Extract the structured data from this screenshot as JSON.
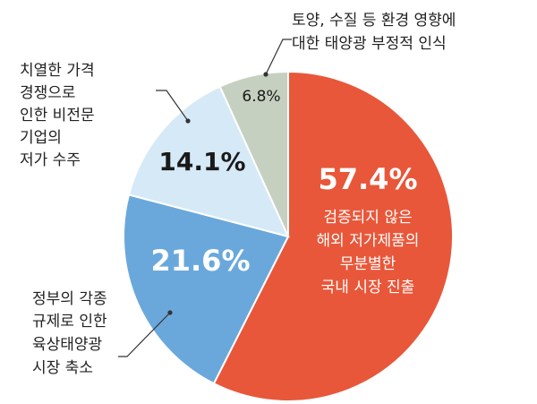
{
  "chart_data": {
    "type": "pie",
    "slices": [
      {
        "label": "검증되지 않은 해외 저가제품의 무분별한 국내 시장 진출",
        "label_lines": [
          "검증되지 않은",
          "해외 저가제품의",
          "무분별한",
          "국내 시장 진출"
        ],
        "value": 57.4,
        "value_text": "57.4%",
        "color": "#e8573a"
      },
      {
        "label": "정부의 각종 규제로 인한 육상태양광 시장 축소",
        "label_lines": [
          "정부의 각종",
          "규제로 인한",
          "육상태양광",
          "시장 축소"
        ],
        "value": 21.6,
        "value_text": "21.6%",
        "color": "#6aa8dc"
      },
      {
        "label": "치열한 가격 경쟁으로 인한 비전문 기업의 저가 수주",
        "label_lines": [
          "치열한 가격",
          "경쟁으로",
          "인한 비전문",
          "기업의",
          "저가 수주"
        ],
        "value": 14.1,
        "value_text": "14.1%",
        "color": "#d6e9f7"
      },
      {
        "label": "토양, 수질 등 환경 영향에 대한 태양광 부정적 인식",
        "label_lines": [
          "토양, 수질 등 환경 영향에",
          "대한 태양광 부정적 인식"
        ],
        "value": 6.8,
        "value_text": "6.8%",
        "color": "#c5d0c0"
      }
    ]
  }
}
